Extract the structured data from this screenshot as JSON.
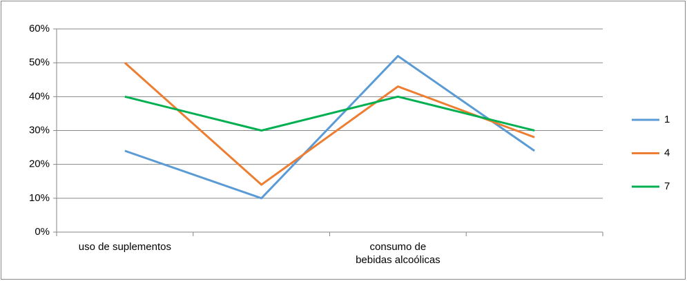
{
  "chart_data": {
    "type": "line",
    "categories": [
      "uso de suplementos",
      null,
      "consumo de\nbebidas alcoólicas",
      null
    ],
    "series": [
      {
        "name": "1",
        "color": "#5b9bd5",
        "values": [
          24,
          10,
          52,
          24
        ]
      },
      {
        "name": "4",
        "color": "#ed7d31",
        "values": [
          50,
          14,
          43,
          28
        ]
      },
      {
        "name": "7",
        "color": "#00b050",
        "values": [
          40,
          30,
          40,
          30
        ]
      }
    ],
    "ylim": [
      0,
      60
    ],
    "yticks": [
      {
        "value": 0,
        "label": "0%"
      },
      {
        "value": 10,
        "label": "10%"
      },
      {
        "value": 20,
        "label": "20%"
      },
      {
        "value": 30,
        "label": "30%"
      },
      {
        "value": 40,
        "label": "40%"
      },
      {
        "value": 50,
        "label": "50%"
      },
      {
        "value": 60,
        "label": "60%"
      }
    ],
    "grid": true,
    "legend": "right"
  }
}
